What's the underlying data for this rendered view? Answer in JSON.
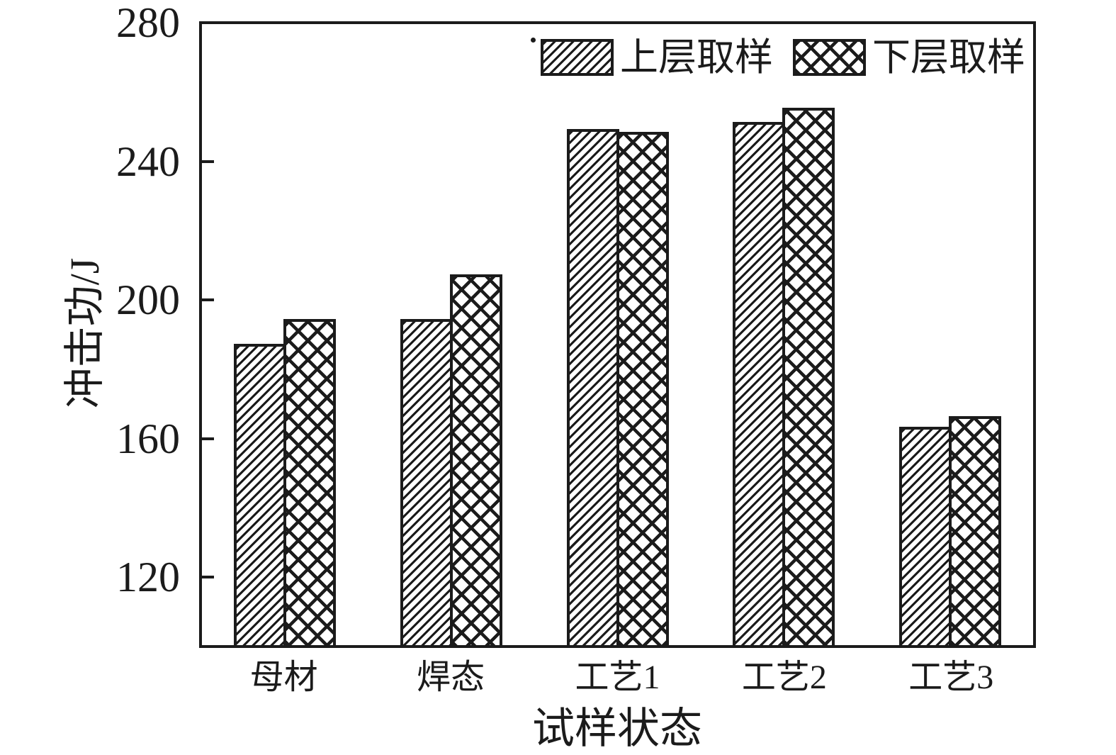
{
  "figure": {
    "background": "#ffffff",
    "ink_color": "#1b1b1b"
  },
  "chart_data": {
    "type": "bar",
    "xlabel": "试样状态",
    "ylabel": "冲击功/J",
    "categories": [
      "母材",
      "焊态",
      "工艺1",
      "工艺2",
      "工艺3"
    ],
    "series": [
      {
        "name": "上层取样",
        "pattern": "diagonal-hatch",
        "values": [
          187,
          194,
          249,
          251,
          163
        ]
      },
      {
        "name": "下层取样",
        "pattern": "cross-hatch",
        "values": [
          194,
          207,
          248,
          255,
          166
        ]
      }
    ],
    "ylim": [
      100,
      280
    ],
    "yticks": [
      120,
      160,
      200,
      240,
      280
    ],
    "grid": false,
    "legend_position": "top-inside"
  }
}
